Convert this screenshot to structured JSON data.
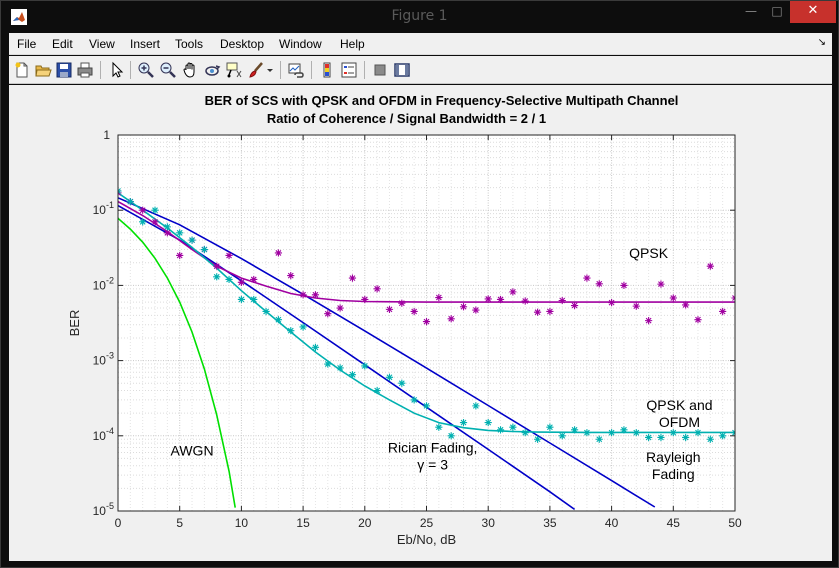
{
  "window": {
    "title": "Figure 1",
    "icon": "matlab-logo-icon",
    "controls": {
      "minimize": "—",
      "maximize": "□",
      "close": "✕"
    }
  },
  "menu": {
    "items": [
      "File",
      "Edit",
      "View",
      "Insert",
      "Tools",
      "Desktop",
      "Window",
      "Help"
    ],
    "overflow_arrow": "↘"
  },
  "toolbar": {
    "icons": [
      "new-figure-icon",
      "open-file-icon",
      "save-icon",
      "print-icon",
      "pointer-icon",
      "zoom-in-icon",
      "zoom-out-icon",
      "pan-icon",
      "rotate-3d-icon",
      "data-cursor-icon",
      "brush-icon",
      "brush-dropdown-icon",
      "link-plot-icon",
      "insert-colorbar-icon",
      "insert-legend-icon",
      "hide-plot-tools-icon",
      "show-plot-tools-icon"
    ]
  },
  "chart_data": {
    "type": "line",
    "title": "BER of SCS with QPSK and OFDM in Frequency-Selective Multipath Channel",
    "subtitle": "Ratio of Coherence / Signal Bandwidth = 2 / 1",
    "xlabel": "Eb/No, dB",
    "ylabel": "BER",
    "xlim": [
      0,
      50
    ],
    "ylim": [
      1e-05,
      1
    ],
    "yscale": "log",
    "grid": true,
    "xticks": [
      "0",
      "5",
      "10",
      "15",
      "20",
      "25",
      "30",
      "35",
      "40",
      "45",
      "50"
    ],
    "yticks": [
      {
        "base": "1",
        "exp": ""
      },
      {
        "base": "10",
        "exp": "-1"
      },
      {
        "base": "10",
        "exp": "-2"
      },
      {
        "base": "10",
        "exp": "-3"
      },
      {
        "base": "10",
        "exp": "-4"
      },
      {
        "base": "10",
        "exp": "-5"
      }
    ],
    "colors": {
      "awgn": "#00e000",
      "fading": "#0000c8",
      "qpsk": "#a000a0",
      "ofdm": "#00b0b0"
    },
    "annotations": [
      {
        "name": "awgn-label",
        "lines": [
          "AWGN"
        ],
        "x": 6,
        "y": 5.5e-05
      },
      {
        "name": "rician-label",
        "lines": [
          "Rician Fading,",
          "γ = 3"
        ],
        "x": 25.5,
        "y": 6e-05
      },
      {
        "name": "rayleigh-label",
        "lines": [
          "Rayleigh",
          "Fading"
        ],
        "x": 45,
        "y": 4.5e-05
      },
      {
        "name": "qpsk-label",
        "lines": [
          "QPSK"
        ],
        "x": 43,
        "y": 0.023
      },
      {
        "name": "qpsk-ofdm-label",
        "lines": [
          "QPSK and",
          "OFDM"
        ],
        "x": 45.5,
        "y": 0.00022
      }
    ],
    "series": [
      {
        "name": "",
        "id": "awgn-curve",
        "kind": "line",
        "color": "awgn",
        "x": [
          0,
          1,
          2,
          3,
          4,
          5,
          6,
          7,
          8,
          9,
          9.5
        ],
        "y": [
          0.078,
          0.056,
          0.0375,
          0.0229,
          0.0125,
          0.006,
          0.0024,
          0.00077,
          0.00019,
          3.36e-05,
          1.11e-05
        ]
      },
      {
        "name": "",
        "id": "rayleigh-curve",
        "kind": "line",
        "color": "fading",
        "x": [
          0,
          5,
          10,
          15,
          20,
          25,
          30,
          35,
          40,
          43.5
        ],
        "y": [
          0.146,
          0.064,
          0.0227,
          0.00762,
          0.00248,
          0.000795,
          0.000253,
          8.02e-05,
          2.54e-05,
          1.13e-05
        ]
      },
      {
        "name": "",
        "id": "rician-curve",
        "kind": "line",
        "color": "fading",
        "x": [
          0,
          5,
          10,
          15,
          20,
          25,
          30,
          35,
          37
        ],
        "y": [
          0.115,
          0.04,
          0.0115,
          0.0032,
          0.00088,
          0.00024,
          6.6e-05,
          1.8e-05,
          1.05e-05
        ]
      },
      {
        "name": "",
        "id": "qpsk-fit",
        "kind": "line",
        "color": "qpsk",
        "x": [
          0,
          2,
          4,
          6,
          8,
          10,
          12,
          14,
          16,
          18,
          20,
          25,
          30,
          35,
          40,
          45,
          50
        ],
        "y": [
          0.13,
          0.085,
          0.052,
          0.03,
          0.018,
          0.0125,
          0.0098,
          0.0078,
          0.0068,
          0.0063,
          0.0061,
          0.006,
          0.006,
          0.006,
          0.006,
          0.006,
          0.006
        ]
      },
      {
        "name": "",
        "id": "ofdm-fit",
        "kind": "line",
        "color": "ofdm",
        "x": [
          0,
          2,
          4,
          6,
          8,
          10,
          12,
          14,
          16,
          18,
          20,
          22,
          24,
          26,
          28,
          30,
          32,
          34,
          38,
          42,
          46,
          50
        ],
        "y": [
          0.17,
          0.1,
          0.058,
          0.032,
          0.017,
          0.0085,
          0.0045,
          0.0024,
          0.0013,
          0.00075,
          0.00046,
          0.0003,
          0.0002,
          0.00015,
          0.000128,
          0.000118,
          0.000114,
          0.000112,
          0.000111,
          0.000111,
          0.000111,
          0.000111
        ]
      },
      {
        "name": "",
        "id": "qpsk-points",
        "kind": "scatter",
        "color": "qpsk",
        "x": [
          0,
          1,
          2,
          3,
          4,
          5,
          6,
          7,
          8,
          9,
          10,
          11,
          13,
          14,
          15,
          16,
          17,
          18,
          19,
          20,
          21,
          22,
          23,
          24,
          25,
          26,
          27,
          28,
          29,
          30,
          31,
          32,
          33,
          34,
          35,
          36,
          37,
          38,
          39,
          40,
          41,
          42,
          43,
          44,
          45,
          46,
          47,
          48,
          49,
          50
        ],
        "y": [
          0.17,
          0.13,
          0.1,
          0.07,
          0.05,
          0.025,
          0.04,
          0.03,
          0.018,
          0.025,
          0.011,
          0.012,
          0.027,
          0.0135,
          0.0075,
          0.0075,
          0.0042,
          0.005,
          0.0125,
          0.0065,
          0.009,
          0.0048,
          0.0058,
          0.0045,
          0.0033,
          0.0069,
          0.0036,
          0.0052,
          0.0047,
          0.0066,
          0.0065,
          0.0082,
          0.0062,
          0.0044,
          0.0045,
          0.0063,
          0.0054,
          0.0125,
          0.0105,
          0.0059,
          0.01,
          0.0053,
          0.0034,
          0.0104,
          0.0068,
          0.0055,
          0.0035,
          0.018,
          0.0045,
          0.0068
        ]
      },
      {
        "name": "",
        "id": "ofdm-points",
        "kind": "scatter",
        "color": "ofdm",
        "x": [
          0,
          1,
          2,
          3,
          4,
          5,
          6,
          7,
          8,
          9,
          10,
          11,
          12,
          13,
          14,
          15,
          16,
          17,
          18,
          19,
          20,
          21,
          22,
          23,
          24,
          25,
          26,
          27,
          28,
          29,
          30,
          31,
          32,
          33,
          34,
          35,
          36,
          37,
          38,
          39,
          40,
          41,
          42,
          43,
          44,
          45,
          46,
          47,
          48,
          49,
          50
        ],
        "y": [
          0.18,
          0.13,
          0.07,
          0.1,
          0.06,
          0.05,
          0.04,
          0.03,
          0.013,
          0.012,
          0.0065,
          0.0065,
          0.0045,
          0.0035,
          0.0025,
          0.0028,
          0.0015,
          0.0009,
          0.0008,
          0.00065,
          0.00085,
          0.0004,
          0.0006,
          0.0005,
          0.0003,
          0.00025,
          0.00013,
          0.0001,
          0.00015,
          0.00025,
          0.00015,
          0.00012,
          0.00013,
          0.00011,
          9e-05,
          0.00013,
          0.0001,
          0.00012,
          0.00011,
          9e-05,
          0.00011,
          0.00012,
          0.00011,
          9.5e-05,
          9.5e-05,
          0.00011,
          9.5e-05,
          0.00011,
          9e-05,
          0.0001,
          0.00011
        ]
      }
    ]
  }
}
